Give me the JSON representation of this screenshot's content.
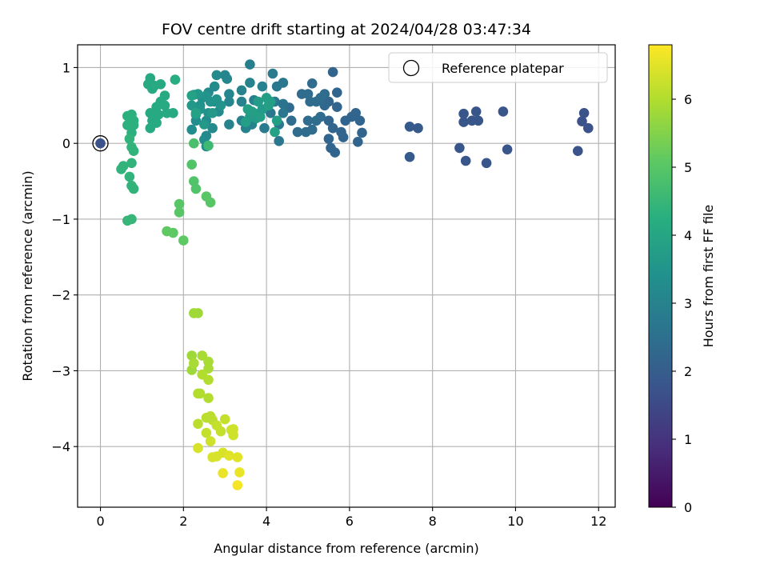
{
  "chart_data": {
    "type": "scatter",
    "title": "FOV centre drift starting at 2024/04/28 03:47:34",
    "xlabel": "Angular distance from reference (arcmin)",
    "ylabel": "Rotation from reference (arcmin)",
    "xlim": [
      -0.55,
      12.4
    ],
    "ylim": [
      -4.8,
      1.3
    ],
    "xticks": [
      0,
      2,
      4,
      6,
      8,
      10,
      12
    ],
    "yticks": [
      -4,
      -3,
      -2,
      -1,
      0,
      1
    ],
    "grid": true,
    "colorbar": {
      "label": "Hours from first FF file",
      "range": [
        0,
        6.8
      ],
      "ticks": [
        0,
        1,
        2,
        3,
        4,
        5,
        6
      ],
      "colormap": "viridis"
    },
    "legend": {
      "placement": "upper-right",
      "entries": [
        "Reference platepar"
      ]
    },
    "reference": {
      "x": 0,
      "y": 0
    },
    "points": [
      [
        0.0,
        0.0,
        1.7
      ],
      [
        7.45,
        0.22,
        1.9
      ],
      [
        7.65,
        0.2,
        1.9
      ],
      [
        7.45,
        -0.18,
        1.9
      ],
      [
        8.75,
        0.39,
        1.8
      ],
      [
        8.75,
        0.28,
        1.8
      ],
      [
        8.95,
        0.3,
        1.8
      ],
      [
        9.05,
        0.42,
        1.8
      ],
      [
        9.1,
        0.3,
        1.8
      ],
      [
        8.65,
        -0.06,
        1.8
      ],
      [
        8.8,
        -0.23,
        1.8
      ],
      [
        9.3,
        -0.26,
        1.8
      ],
      [
        9.7,
        0.42,
        1.8
      ],
      [
        9.8,
        -0.08,
        1.8
      ],
      [
        11.5,
        -0.1,
        1.7
      ],
      [
        11.6,
        0.29,
        1.7
      ],
      [
        11.65,
        0.4,
        1.7
      ],
      [
        11.75,
        0.2,
        1.7
      ],
      [
        5.6,
        0.94,
        2.2
      ],
      [
        5.7,
        0.67,
        2.2
      ],
      [
        5.5,
        0.55,
        2.2
      ],
      [
        5.7,
        0.48,
        2.2
      ],
      [
        5.5,
        0.3,
        2.2
      ],
      [
        5.6,
        0.2,
        2.2
      ],
      [
        5.8,
        0.15,
        2.2
      ],
      [
        5.5,
        0.06,
        2.2
      ],
      [
        5.55,
        -0.06,
        2.2
      ],
      [
        5.65,
        -0.12,
        2.2
      ],
      [
        5.85,
        0.08,
        2.2
      ],
      [
        5.9,
        0.3,
        2.2
      ],
      [
        6.05,
        0.35,
        2.2
      ],
      [
        6.15,
        0.4,
        2.2
      ],
      [
        6.25,
        0.3,
        2.2
      ],
      [
        6.3,
        0.14,
        2.2
      ],
      [
        6.2,
        0.02,
        2.2
      ],
      [
        5.4,
        0.5,
        2.3
      ],
      [
        5.0,
        0.65,
        2.4
      ],
      [
        5.1,
        0.79,
        2.4
      ],
      [
        5.05,
        0.55,
        2.4
      ],
      [
        5.2,
        0.55,
        2.4
      ],
      [
        5.3,
        0.6,
        2.4
      ],
      [
        5.4,
        0.65,
        2.4
      ],
      [
        5.2,
        0.3,
        2.4
      ],
      [
        5.3,
        0.35,
        2.4
      ],
      [
        5.0,
        0.3,
        2.4
      ],
      [
        4.95,
        0.15,
        2.4
      ],
      [
        5.1,
        0.18,
        2.4
      ],
      [
        4.75,
        0.15,
        2.4
      ],
      [
        4.85,
        0.65,
        2.4
      ],
      [
        4.6,
        0.3,
        2.4
      ],
      [
        4.55,
        0.47,
        2.4
      ],
      [
        4.25,
        0.75,
        2.7
      ],
      [
        4.2,
        0.55,
        2.7
      ],
      [
        4.4,
        0.52,
        2.6
      ],
      [
        4.1,
        0.4,
        2.7
      ],
      [
        4.3,
        0.25,
        2.7
      ],
      [
        4.4,
        0.4,
        2.7
      ],
      [
        4.3,
        0.03,
        2.7
      ],
      [
        4.15,
        0.92,
        2.8
      ],
      [
        4.4,
        0.8,
        2.7
      ],
      [
        3.95,
        0.2,
        2.8
      ],
      [
        3.7,
        0.57,
        2.9
      ],
      [
        3.6,
        1.04,
        2.9
      ],
      [
        3.4,
        0.7,
        3.0
      ],
      [
        3.4,
        0.55,
        3.0
      ],
      [
        3.6,
        0.8,
        3.0
      ],
      [
        3.9,
        0.75,
        3.0
      ],
      [
        3.4,
        0.3,
        3.0
      ],
      [
        3.5,
        0.2,
        3.0
      ],
      [
        3.65,
        0.25,
        3.0
      ],
      [
        3.1,
        0.25,
        3.0
      ],
      [
        3.1,
        0.55,
        3.1
      ],
      [
        3.1,
        0.65,
        3.1
      ],
      [
        2.8,
        0.9,
        3.2
      ],
      [
        2.75,
        0.75,
        3.2
      ],
      [
        3.0,
        0.9,
        3.1
      ],
      [
        3.05,
        0.85,
        3.1
      ],
      [
        2.6,
        0.67,
        3.2
      ],
      [
        2.75,
        0.55,
        3.2
      ],
      [
        2.85,
        0.42,
        3.2
      ],
      [
        2.55,
        0.3,
        3.2
      ],
      [
        2.7,
        0.2,
        3.2
      ],
      [
        2.55,
        0.1,
        3.2
      ],
      [
        2.2,
        0.18,
        3.3
      ],
      [
        2.3,
        0.3,
        3.3
      ],
      [
        2.5,
        0.05,
        3.3
      ],
      [
        2.55,
        -0.04,
        3.3
      ],
      [
        2.45,
        0.6,
        3.4
      ],
      [
        2.4,
        0.5,
        3.4
      ],
      [
        2.6,
        0.4,
        3.4
      ],
      [
        2.4,
        0.45,
        3.5
      ],
      [
        2.55,
        0.63,
        3.5
      ],
      [
        2.65,
        0.55,
        3.5
      ],
      [
        2.8,
        0.58,
        3.5
      ],
      [
        2.9,
        0.5,
        3.5
      ],
      [
        2.35,
        0.65,
        3.6
      ],
      [
        2.25,
        0.64,
        3.6
      ],
      [
        2.2,
        0.5,
        3.6
      ],
      [
        2.3,
        0.38,
        3.6
      ],
      [
        2.5,
        0.25,
        3.6
      ],
      [
        2.7,
        0.4,
        3.6
      ],
      [
        3.8,
        0.55,
        3.7
      ],
      [
        3.9,
        0.45,
        3.7
      ],
      [
        3.7,
        0.4,
        3.7
      ],
      [
        3.6,
        0.35,
        3.7
      ],
      [
        3.75,
        0.33,
        3.7
      ],
      [
        3.55,
        0.45,
        3.8
      ],
      [
        3.65,
        0.42,
        3.8
      ],
      [
        4.0,
        0.6,
        3.8
      ],
      [
        4.05,
        0.5,
        3.8
      ],
      [
        4.1,
        0.55,
        3.8
      ],
      [
        3.85,
        0.35,
        3.8
      ],
      [
        3.5,
        0.28,
        3.8
      ],
      [
        4.25,
        0.3,
        3.8
      ],
      [
        4.2,
        0.15,
        3.9
      ],
      [
        1.2,
        0.86,
        4.1
      ],
      [
        1.15,
        0.78,
        4.1
      ],
      [
        1.25,
        0.72,
        4.1
      ],
      [
        1.45,
        0.78,
        4.1
      ],
      [
        1.3,
        0.76,
        4.1
      ],
      [
        1.55,
        0.63,
        4.1
      ],
      [
        1.45,
        0.55,
        4.1
      ],
      [
        1.55,
        0.5,
        4.1
      ],
      [
        1.35,
        0.48,
        4.1
      ],
      [
        1.4,
        0.38,
        4.1
      ],
      [
        1.2,
        0.4,
        4.1
      ],
      [
        1.25,
        0.3,
        4.1
      ],
      [
        1.2,
        0.2,
        4.1
      ],
      [
        1.35,
        0.27,
        4.1
      ],
      [
        1.6,
        0.4,
        4.1
      ],
      [
        1.75,
        0.4,
        4.1
      ],
      [
        1.8,
        0.84,
        4.2
      ],
      [
        2.2,
        0.63,
        3.9
      ],
      [
        2.3,
        0.4,
        3.9
      ],
      [
        0.65,
        0.36,
        4.3
      ],
      [
        0.75,
        0.38,
        4.3
      ],
      [
        0.8,
        0.3,
        4.3
      ],
      [
        0.8,
        0.24,
        4.3
      ],
      [
        0.65,
        0.24,
        4.3
      ],
      [
        0.75,
        0.14,
        4.3
      ],
      [
        0.7,
        0.06,
        4.4
      ],
      [
        0.75,
        -0.05,
        4.4
      ],
      [
        0.8,
        -0.1,
        4.4
      ],
      [
        0.75,
        -0.26,
        4.4
      ],
      [
        0.55,
        -0.3,
        4.4
      ],
      [
        0.5,
        -0.34,
        4.4
      ],
      [
        0.7,
        -0.44,
        4.4
      ],
      [
        0.75,
        -0.56,
        4.4
      ],
      [
        0.8,
        -0.6,
        4.4
      ],
      [
        0.65,
        -1.02,
        4.5
      ],
      [
        0.75,
        -1.0,
        4.5
      ],
      [
        2.25,
        0.0,
        4.8
      ],
      [
        2.2,
        -0.28,
        4.9
      ],
      [
        2.25,
        -0.5,
        4.9
      ],
      [
        2.3,
        -0.6,
        4.9
      ],
      [
        2.55,
        -0.7,
        5.0
      ],
      [
        2.65,
        -0.78,
        5.0
      ],
      [
        1.9,
        -0.8,
        5.0
      ],
      [
        1.9,
        -0.91,
        5.0
      ],
      [
        1.6,
        -1.16,
        5.1
      ],
      [
        1.75,
        -1.18,
        5.1
      ],
      [
        2.0,
        -1.28,
        5.1
      ],
      [
        2.6,
        -0.03,
        4.6
      ],
      [
        2.25,
        -2.24,
        5.8
      ],
      [
        2.35,
        -2.24,
        5.8
      ],
      [
        2.2,
        -2.8,
        5.8
      ],
      [
        2.2,
        -2.99,
        5.8
      ],
      [
        2.25,
        -2.9,
        5.9
      ],
      [
        2.45,
        -2.8,
        5.9
      ],
      [
        2.6,
        -2.88,
        5.9
      ],
      [
        2.6,
        -2.97,
        5.9
      ],
      [
        2.45,
        -3.05,
        6.0
      ],
      [
        2.6,
        -3.12,
        6.0
      ],
      [
        2.35,
        -3.3,
        6.0
      ],
      [
        2.4,
        -3.3,
        6.0
      ],
      [
        2.6,
        -3.36,
        6.0
      ],
      [
        2.55,
        -3.62,
        6.1
      ],
      [
        2.65,
        -3.6,
        6.1
      ],
      [
        2.7,
        -3.65,
        6.1
      ],
      [
        2.35,
        -3.7,
        6.1
      ],
      [
        2.55,
        -3.82,
        6.2
      ],
      [
        2.8,
        -3.72,
        6.2
      ],
      [
        2.9,
        -3.8,
        6.2
      ],
      [
        3.0,
        -3.64,
        6.2
      ],
      [
        3.15,
        -3.78,
        6.3
      ],
      [
        3.2,
        -3.85,
        6.3
      ],
      [
        3.2,
        -3.77,
        6.3
      ],
      [
        2.65,
        -3.93,
        6.3
      ],
      [
        2.35,
        -4.02,
        6.4
      ],
      [
        2.95,
        -4.08,
        6.4
      ],
      [
        2.7,
        -4.14,
        6.4
      ],
      [
        2.8,
        -4.13,
        6.4
      ],
      [
        3.1,
        -4.12,
        6.5
      ],
      [
        3.3,
        -4.14,
        6.5
      ],
      [
        3.35,
        -4.34,
        6.6
      ],
      [
        2.95,
        -4.35,
        6.6
      ],
      [
        3.3,
        -4.51,
        6.7
      ]
    ]
  }
}
